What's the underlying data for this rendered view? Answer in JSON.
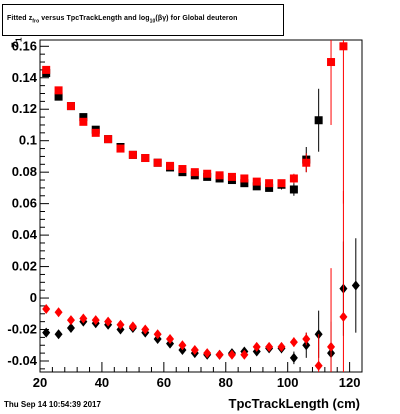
{
  "title": {
    "prefix": "Fitted  z",
    "sub1": "fro",
    "middle": " versus TpcTrackLength and log",
    "sub2": "10",
    "suffix": "(βγ) for Global deuteron"
  },
  "date_stamp": "Thu Sep 14 10:54:39 2017",
  "chart_data": {
    "type": "scatter",
    "xlabel": "TpcTrackLength (cm)",
    "ylabel": "z",
    "ylabel_sub": "1",
    "xlim": [
      20,
      124
    ],
    "ylim": [
      -0.047,
      0.164
    ],
    "xticks": [
      20,
      40,
      60,
      80,
      100,
      120
    ],
    "yticks": [
      -0.04,
      -0.02,
      0,
      0.02,
      0.04,
      0.06,
      0.08,
      0.1,
      0.12,
      0.14,
      0.16
    ],
    "ytick_labels": [
      "-0.04",
      "-0.02",
      "0",
      "0.02",
      "0.04",
      "0.06",
      "0.08",
      "0.1",
      "0.12",
      "0.14",
      "0.16"
    ],
    "grid": false,
    "series": [
      {
        "color": "#000000",
        "marker": "square",
        "x": [
          22,
          26,
          30,
          34,
          38,
          42,
          46,
          50,
          54,
          58,
          62,
          66,
          70,
          74,
          78,
          82,
          86,
          90,
          94,
          98,
          102,
          106,
          110
        ],
        "y": [
          0.143,
          0.128,
          0.122,
          0.115,
          0.107,
          0.101,
          0.096,
          0.091,
          0.089,
          0.086,
          0.083,
          0.08,
          0.078,
          0.077,
          0.076,
          0.075,
          0.073,
          0.071,
          0.07,
          0.072,
          0.069,
          0.088,
          0.113
        ],
        "yerr": [
          0.002,
          0.002,
          0.002,
          0.002,
          0.002,
          0.002,
          0.002,
          0.002,
          0.002,
          0.002,
          0.002,
          0.002,
          0.002,
          0.002,
          0.002,
          0.002,
          0.002,
          0.002,
          0.002,
          0.003,
          0.004,
          0.008,
          0.02
        ]
      },
      {
        "color": "#ff0000",
        "marker": "square",
        "x": [
          22,
          26,
          30,
          34,
          38,
          42,
          46,
          50,
          54,
          58,
          62,
          66,
          70,
          74,
          78,
          82,
          86,
          90,
          94,
          98,
          102,
          106,
          114,
          118
        ],
        "y": [
          0.145,
          0.132,
          0.122,
          0.112,
          0.105,
          0.101,
          0.095,
          0.091,
          0.089,
          0.086,
          0.084,
          0.082,
          0.08,
          0.079,
          0.078,
          0.077,
          0.076,
          0.074,
          0.073,
          0.073,
          0.076,
          0.086,
          0.15,
          0.16
        ],
        "yerr": [
          0.002,
          0.002,
          0.002,
          0.002,
          0.002,
          0.002,
          0.002,
          0.002,
          0.002,
          0.002,
          0.002,
          0.002,
          0.002,
          0.002,
          0.002,
          0.002,
          0.002,
          0.002,
          0.002,
          0.002,
          0.003,
          0.006,
          0.04,
          0.1
        ]
      },
      {
        "color": "#000000",
        "marker": "diamond",
        "x": [
          22,
          26,
          30,
          34,
          38,
          42,
          46,
          50,
          54,
          58,
          62,
          66,
          70,
          74,
          78,
          82,
          86,
          90,
          94,
          98,
          102,
          106,
          110,
          114,
          118,
          122
        ],
        "y": [
          -0.022,
          -0.023,
          -0.019,
          -0.015,
          -0.016,
          -0.017,
          -0.02,
          -0.019,
          -0.022,
          -0.026,
          -0.029,
          -0.033,
          -0.035,
          -0.036,
          -0.036,
          -0.035,
          -0.034,
          -0.034,
          -0.032,
          -0.032,
          -0.038,
          -0.03,
          -0.023,
          -0.035,
          0.006,
          0.008
        ],
        "yerr": [
          0.002,
          0.002,
          0.002,
          0.002,
          0.002,
          0.002,
          0.002,
          0.002,
          0.002,
          0.002,
          0.002,
          0.002,
          0.002,
          0.002,
          0.002,
          0.002,
          0.002,
          0.002,
          0.002,
          0.003,
          0.004,
          0.008,
          0.015,
          0.02,
          0.03,
          0.03
        ]
      },
      {
        "color": "#ff0000",
        "marker": "diamond",
        "x": [
          22,
          26,
          30,
          34,
          38,
          42,
          46,
          50,
          54,
          58,
          62,
          66,
          70,
          74,
          78,
          82,
          86,
          90,
          94,
          98,
          102,
          106,
          110,
          114,
          118
        ],
        "y": [
          -0.007,
          -0.009,
          -0.014,
          -0.013,
          -0.014,
          -0.015,
          -0.017,
          -0.018,
          -0.02,
          -0.023,
          -0.026,
          -0.03,
          -0.033,
          -0.035,
          -0.036,
          -0.036,
          -0.036,
          -0.031,
          -0.031,
          -0.031,
          -0.028,
          -0.026,
          -0.043,
          -0.031,
          -0.012
        ],
        "yerr": [
          0.002,
          0.002,
          0.002,
          0.002,
          0.002,
          0.002,
          0.002,
          0.002,
          0.002,
          0.002,
          0.002,
          0.002,
          0.002,
          0.002,
          0.002,
          0.002,
          0.002,
          0.002,
          0.002,
          0.002,
          0.003,
          0.004,
          0.02,
          0.05,
          0.08
        ]
      }
    ]
  }
}
